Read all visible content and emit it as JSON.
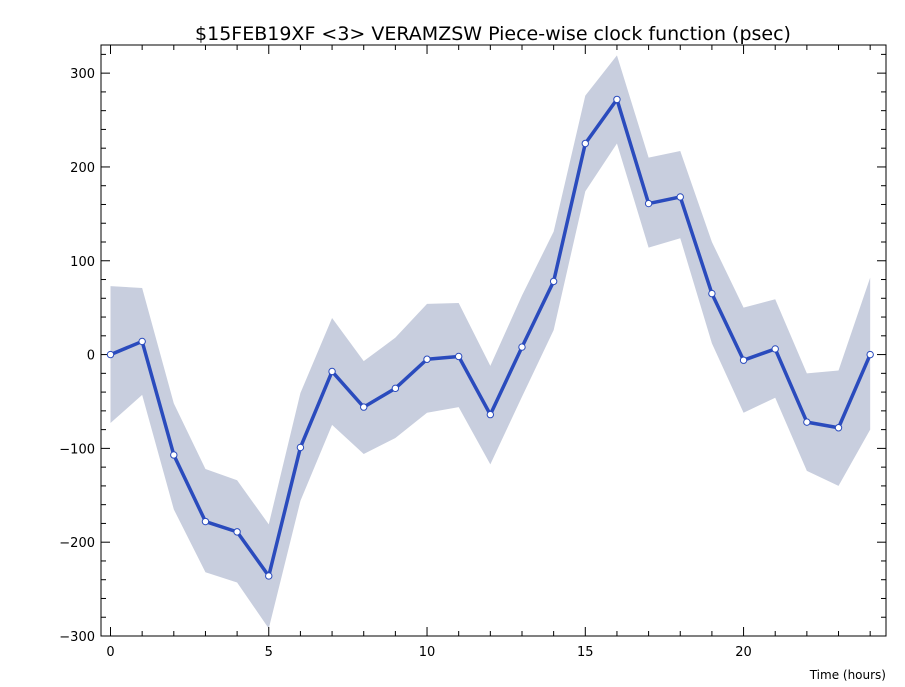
{
  "chart_data": {
    "type": "line",
    "title": "$15FEB19XF <3>  VERAMZSW  Piece-wise clock function (psec)",
    "xlabel": "Time (hours)",
    "ylabel": "",
    "xlim": [
      -0.3,
      24.5
    ],
    "ylim": [
      -300,
      330
    ],
    "xticks": [
      0,
      5,
      10,
      15,
      20
    ],
    "yticks": [
      -300,
      -200,
      -100,
      0,
      100,
      200,
      300
    ],
    "xtick_labels": [
      "0",
      "5",
      "10",
      "15",
      "20"
    ],
    "ytick_labels": [
      "−300",
      "−200",
      "−100",
      "0",
      "100",
      "200",
      "300"
    ],
    "grid": false,
    "colors": {
      "line": "#2a4bbd",
      "band": "#c8cede",
      "marker_fill": "#ffffff",
      "frame": "#000000"
    },
    "x": [
      0,
      1,
      2,
      3,
      4,
      5,
      6,
      7,
      8,
      9,
      10,
      11,
      12,
      13,
      14,
      15,
      16,
      17,
      18,
      19,
      20,
      21,
      22,
      23,
      24
    ],
    "series": [
      {
        "values": [
          0,
          14,
          -107,
          -178,
          -189,
          -236,
          -99,
          -18,
          -56,
          -36,
          -5,
          -2,
          -64,
          8,
          78,
          225,
          272,
          161,
          168,
          65,
          -6,
          6,
          -72,
          -78,
          0
        ]
      }
    ],
    "band": {
      "upper": [
        73,
        71,
        -52,
        -122,
        -134,
        -181,
        -41,
        39,
        -7,
        18,
        54,
        55,
        -12,
        63,
        131,
        276,
        319,
        210,
        217,
        120,
        50,
        59,
        -20,
        -17,
        82
      ],
      "lower": [
        -73,
        -43,
        -165,
        -232,
        -243,
        -292,
        -156,
        -75,
        -106,
        -89,
        -62,
        -56,
        -117,
        -45,
        26,
        174,
        225,
        114,
        124,
        12,
        -62,
        -46,
        -124,
        -140,
        -80
      ]
    }
  }
}
